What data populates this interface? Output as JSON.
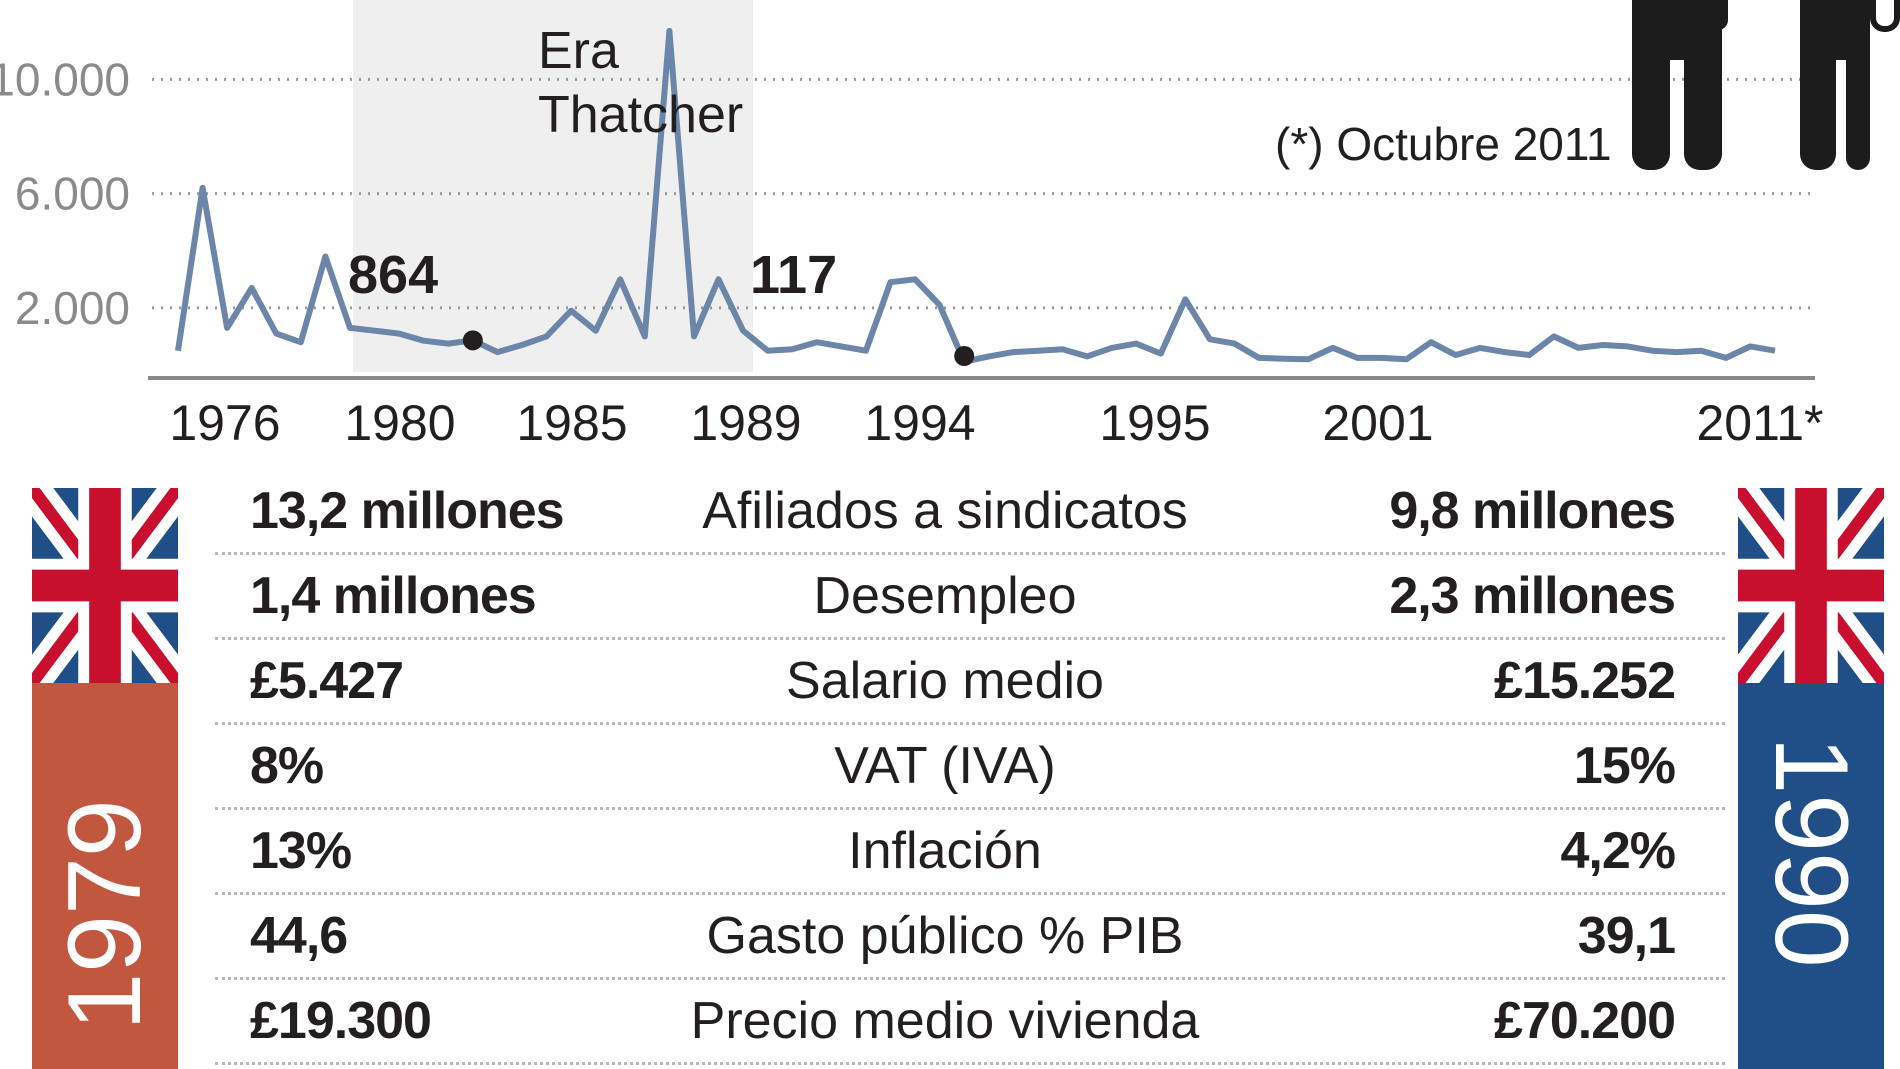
{
  "chart_data": {
    "type": "line",
    "title": "",
    "xlabel": "",
    "ylabel": "",
    "ylim": [
      0,
      11800
    ],
    "y_ticks": [
      "10.000",
      "6.000",
      "2.000"
    ],
    "y_tick_values": [
      10000,
      6000,
      2000
    ],
    "x_tick_labels": [
      "1976",
      "1980",
      "1985",
      "1989",
      "1994",
      "1995",
      "2001",
      "2011*"
    ],
    "grid": "dotted horizontal",
    "series": [
      {
        "color": "#6b86a8",
        "values": [
          500,
          6200,
          1300,
          2700,
          1100,
          800,
          3800,
          1300,
          1200,
          1100,
          850,
          750,
          864,
          450,
          700,
          1000,
          1900,
          1200,
          3000,
          1000,
          11700,
          1000,
          3000,
          1200,
          500,
          550,
          800,
          650,
          500,
          2900,
          3000,
          2100,
          117,
          300,
          450,
          500,
          550,
          300,
          600,
          750,
          400,
          2300,
          900,
          750,
          250,
          220,
          200,
          600,
          250,
          250,
          200,
          800,
          350,
          600,
          450,
          350,
          1000,
          600,
          700,
          650,
          500,
          450,
          500,
          250,
          650,
          500
        ]
      }
    ],
    "highlight_period": {
      "label": "Era\nThatcher",
      "start": 1979,
      "end": 1990
    },
    "annotations": [
      {
        "label": "864",
        "value": 864
      },
      {
        "label": "117",
        "value": 117
      }
    ],
    "note": "(*) Octubre 2011"
  },
  "era_label_line1": "Era",
  "era_label_line2": "Thatcher",
  "comparison": {
    "year_left": "1979",
    "year_right": "1990",
    "banner_colors": {
      "left": "#c2573f",
      "right": "#1f4f86"
    },
    "rows": [
      {
        "left": "13,2 millones",
        "label": "Afiliados a sindicatos",
        "right": "9,8 millones"
      },
      {
        "left": "1,4 millones",
        "label": "Desempleo",
        "right": "2,3 millones"
      },
      {
        "left": "£5.427",
        "label": "Salario medio",
        "right": "£15.252"
      },
      {
        "left": "8%",
        "label": "VAT (IVA)",
        "right": "15%"
      },
      {
        "left": "13%",
        "label": "Inflación",
        "right": "4,2%"
      },
      {
        "left": "44,6",
        "label": "Gasto público % PIB",
        "right": "39,1"
      },
      {
        "left": "£19.300",
        "label": "Precio medio vivienda",
        "right": "£70.200"
      }
    ]
  }
}
